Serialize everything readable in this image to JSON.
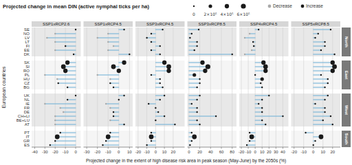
{
  "chart_data": {
    "type": "lollipop",
    "orientation": "horizontal",
    "title": "Projected change in mean DIN (active nymphal ticks per ha)",
    "xlabel": "Projected change in the extent of high disease risk area in peak season (May-June) by the 2050s (%)",
    "ylabel": "European countries",
    "color": "#6baed6",
    "grid": true,
    "groups": [
      {
        "name": "North",
        "color": "#e8e8e8",
        "categories": [
          "SE",
          "NO",
          "LV",
          "LT",
          "FI",
          "EE",
          "DK"
        ]
      },
      {
        "name": "East",
        "color": "#f5f5f5",
        "categories": [
          "SK",
          "SI",
          "RO",
          "PL",
          "HU",
          "CZ",
          "BG"
        ]
      },
      {
        "name": "West",
        "color": "#e8e8e8",
        "categories": [
          "UK",
          "NL",
          "IE",
          "FR",
          "DE",
          "CH+LI",
          "BE+LU",
          "AT"
        ]
      },
      {
        "name": "South",
        "color": "#f5f5f5",
        "categories": [
          "PT",
          "IT",
          "GR",
          "ES"
        ]
      }
    ],
    "legend_items": [
      {
        "name": "Decrease",
        "color": "#aaaaaa"
      },
      {
        "name": "Increase",
        "color": "#1a1a1a"
      }
    ],
    "size_legend": {
      "values": [
        0,
        200000,
        400000,
        600000
      ],
      "labels": [
        "0",
        "2×10⁵",
        "4×10⁵",
        "6×10⁵"
      ]
    },
    "panels": [
      {
        "title": "SSP1xRCP2.6",
        "xlim": [
          -43,
          5
        ],
        "xticks": [
          -40,
          -30,
          -20,
          -10,
          0
        ],
        "values": [
          0,
          -20,
          -28,
          -20,
          -10,
          -20,
          -2,
          -8,
          -12,
          -10,
          -30,
          -18,
          -17,
          -8,
          0,
          -8,
          -30,
          -15,
          -12,
          -20,
          -20,
          -20,
          -15,
          -18,
          -20,
          -25
        ],
        "size": [
          0,
          0,
          0,
          0,
          0,
          0,
          0,
          400000,
          500000,
          400000,
          0,
          0,
          0,
          0,
          0,
          0,
          0,
          0,
          0,
          0,
          0,
          0,
          0,
          500000,
          0,
          0
        ],
        "decrease": [
          false,
          true,
          true,
          true,
          false,
          true,
          false,
          false,
          false,
          false,
          true,
          true,
          false,
          false,
          false,
          false,
          true,
          true,
          true,
          true,
          true,
          true,
          false,
          false,
          false,
          false
        ]
      },
      {
        "title": "SSP1xRCP4.5",
        "xlim": [
          -33,
          13
        ],
        "xticks": [
          -30,
          -20,
          -10,
          0,
          10
        ],
        "values": [
          5,
          -10,
          -20,
          -10,
          -5,
          -10,
          10,
          5,
          -5,
          0,
          -20,
          -8,
          -8,
          -5,
          5,
          0,
          -12,
          -8,
          -5,
          -5,
          -8,
          5,
          -8,
          -10,
          -12,
          -15
        ],
        "size": [
          0,
          0,
          0,
          0,
          0,
          0,
          0,
          400000,
          500000,
          400000,
          0,
          0,
          0,
          0,
          0,
          0,
          0,
          0,
          0,
          0,
          0,
          0,
          0,
          500000,
          0,
          0
        ],
        "decrease": [
          false,
          true,
          true,
          true,
          true,
          true,
          false,
          false,
          false,
          false,
          true,
          true,
          false,
          false,
          false,
          false,
          true,
          true,
          false,
          false,
          true,
          false,
          false,
          false,
          false,
          false
        ]
      },
      {
        "title": "SSP3xRCP4.5",
        "xlim": [
          -23,
          33
        ],
        "xticks": [
          -20,
          -10,
          0,
          10,
          20
        ],
        "values": [
          8,
          -5,
          -10,
          -5,
          5,
          -5,
          5,
          10,
          15,
          15,
          -5,
          5,
          5,
          8,
          10,
          5,
          -8,
          0,
          3,
          10,
          0,
          22,
          -5,
          -5,
          -5,
          -10
        ],
        "size": [
          0,
          0,
          0,
          0,
          0,
          0,
          0,
          400000,
          500000,
          400000,
          0,
          0,
          0,
          0,
          0,
          0,
          0,
          0,
          0,
          0,
          0,
          0,
          0,
          500000,
          0,
          0
        ],
        "decrease": [
          false,
          false,
          false,
          false,
          false,
          false,
          false,
          false,
          false,
          false,
          false,
          false,
          false,
          false,
          false,
          false,
          false,
          false,
          false,
          false,
          false,
          false,
          false,
          false,
          false,
          false
        ]
      },
      {
        "title": "SSP3xRCP8.5",
        "xlim": [
          -3,
          88
        ],
        "xticks": [
          0,
          20,
          40,
          60,
          80
        ],
        "values": [
          18,
          5,
          2,
          15,
          15,
          10,
          80,
          25,
          35,
          30,
          10,
          20,
          20,
          15,
          20,
          15,
          5,
          15,
          15,
          50,
          15,
          20,
          5,
          10,
          5,
          2
        ],
        "size": [
          0,
          0,
          0,
          0,
          0,
          0,
          0,
          400000,
          600000,
          400000,
          200000,
          0,
          0,
          0,
          0,
          0,
          0,
          0,
          0,
          0,
          0,
          0,
          0,
          500000,
          0,
          0
        ],
        "decrease": [
          false,
          false,
          false,
          false,
          false,
          false,
          false,
          false,
          false,
          false,
          false,
          false,
          false,
          false,
          false,
          false,
          false,
          false,
          false,
          false,
          false,
          false,
          false,
          false,
          false,
          false
        ]
      },
      {
        "title": "SSP4xRCP4.5",
        "xlim": [
          -23,
          48
        ],
        "xticks": [
          -20,
          -10,
          0,
          10,
          20,
          30,
          40
        ],
        "values": [
          5,
          -8,
          -15,
          -3,
          -2,
          -5,
          -15,
          12,
          15,
          15,
          0,
          10,
          8,
          10,
          20,
          10,
          5,
          10,
          10,
          40,
          10,
          15,
          -8,
          -5,
          -8,
          -12
        ],
        "size": [
          0,
          0,
          0,
          0,
          0,
          0,
          0,
          400000,
          500000,
          400000,
          0,
          200000,
          0,
          0,
          0,
          0,
          0,
          0,
          0,
          0,
          0,
          0,
          0,
          500000,
          0,
          0
        ],
        "decrease": [
          false,
          true,
          true,
          false,
          false,
          true,
          true,
          false,
          false,
          false,
          false,
          false,
          false,
          false,
          false,
          false,
          false,
          false,
          false,
          false,
          false,
          false,
          false,
          false,
          false,
          false
        ]
      },
      {
        "title": "SSP5xRCP8.5",
        "xlim": [
          -23,
          28
        ],
        "xticks": [
          -20,
          -10,
          0,
          10,
          20
        ],
        "values": [
          18,
          5,
          2,
          12,
          12,
          8,
          22,
          20,
          22,
          20,
          8,
          15,
          15,
          12,
          15,
          12,
          2,
          12,
          12,
          18,
          10,
          20,
          -8,
          8,
          2,
          0
        ],
        "size": [
          0,
          0,
          0,
          0,
          0,
          0,
          0,
          400000,
          500000,
          400000,
          0,
          0,
          0,
          0,
          0,
          0,
          0,
          0,
          0,
          0,
          0,
          0,
          0,
          500000,
          0,
          0
        ],
        "decrease": [
          false,
          false,
          false,
          false,
          false,
          false,
          false,
          false,
          false,
          false,
          false,
          false,
          false,
          false,
          false,
          false,
          false,
          false,
          false,
          false,
          false,
          false,
          false,
          false,
          false,
          false
        ]
      }
    ]
  }
}
